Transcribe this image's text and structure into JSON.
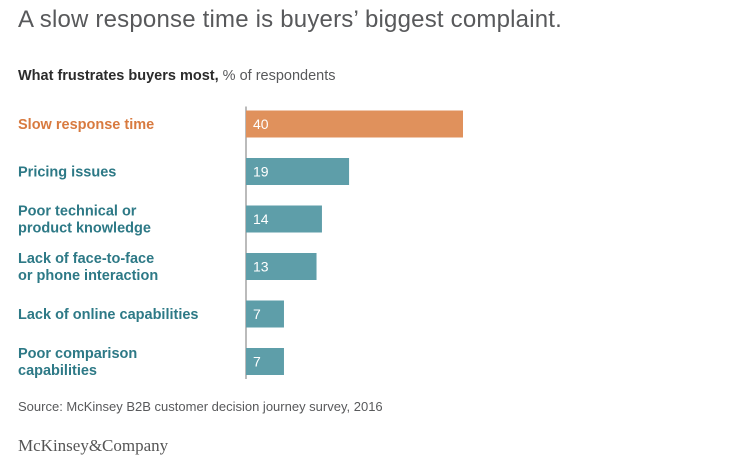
{
  "headline": "A slow response time is buyers’ biggest complaint.",
  "subtitle": {
    "bold": "What frustrates buyers most,",
    "unit": "% of respondents"
  },
  "source": "Source: McKinsey B2B customer decision journey survey, 2016",
  "logo": "McKinsey&Company",
  "colors": {
    "highlight": "#e0915c",
    "bar": "#5e9ea9",
    "label_default": "#2d7986",
    "label_highlight": "#d87a3f",
    "axis": "#777777"
  },
  "chart_data": {
    "type": "bar",
    "orientation": "horizontal",
    "title": "What frustrates buyers most, % of respondents",
    "categories": [
      "Slow response time",
      "Pricing issues",
      "Poor technical or product knowledge",
      "Lack of face-to-face or phone interaction",
      "Lack of online capabilities",
      "Poor comparison capabilities"
    ],
    "category_lines": [
      [
        "Slow response time"
      ],
      [
        "Pricing issues"
      ],
      [
        "Poor technical or",
        "product knowledge"
      ],
      [
        "Lack of face-to-face",
        "or phone interaction"
      ],
      [
        "Lack of online capabilities"
      ],
      [
        "Poor comparison",
        "capabilities"
      ]
    ],
    "values": [
      40,
      19,
      14,
      13,
      7,
      7
    ],
    "highlight_index": 0,
    "xlim": [
      0,
      40
    ],
    "grid": false,
    "legend": "none"
  }
}
